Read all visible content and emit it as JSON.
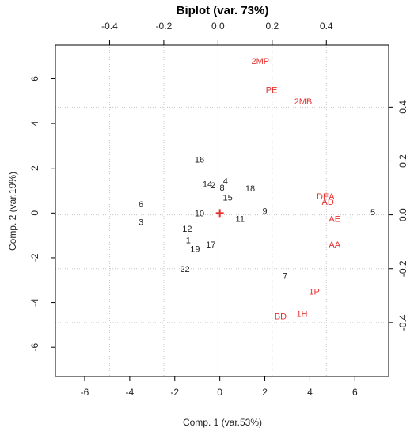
{
  "chart_data": {
    "type": "scatter",
    "title": "Biplot (var. 73%)",
    "xlabel": "Comp. 1 (var.53%)",
    "ylabel": "Comp. 2 (var.19%)",
    "xlim": [
      -7.3,
      7.5
    ],
    "ylim": [
      -7.3,
      7.5
    ],
    "x_ticks": [
      -6,
      -4,
      -2,
      0,
      2,
      4,
      6
    ],
    "x_tick_labels": [
      "-6",
      "-4",
      "-2",
      "0",
      "2",
      "4",
      "6"
    ],
    "y_ticks": [
      -6,
      -4,
      -2,
      0,
      2,
      4,
      6
    ],
    "y_tick_labels": [
      "-6",
      "-4",
      "-2",
      "0",
      "2",
      "4",
      "6"
    ],
    "top_axis": {
      "lim": [
        -0.6,
        0.63
      ],
      "ticks": [
        -0.4,
        -0.2,
        0.0,
        0.2,
        0.4
      ],
      "tick_labels": [
        "-0.4",
        "-0.2",
        "0.0",
        "0.2",
        "0.4"
      ]
    },
    "right_axis": {
      "lim": [
        -0.6,
        0.63
      ],
      "ticks": [
        -0.4,
        -0.2,
        0.0,
        0.2,
        0.4
      ],
      "tick_labels": [
        "-0.4",
        "-0.2",
        "0.0",
        "0.2",
        "0.4"
      ]
    },
    "grid": true,
    "origin_marker": "+",
    "colors": {
      "observations": "#222222",
      "variables": "#e8312f",
      "grid": "#c8c8c8",
      "axes": "#000000"
    },
    "observations": [
      {
        "label": "16",
        "x": -0.9,
        "y": 2.4
      },
      {
        "label": "14",
        "x": -0.55,
        "y": 1.3
      },
      {
        "label": "2",
        "x": -0.3,
        "y": 1.25
      },
      {
        "label": "4",
        "x": 0.25,
        "y": 1.45
      },
      {
        "label": "8",
        "x": 0.1,
        "y": 1.15
      },
      {
        "label": "18",
        "x": 1.35,
        "y": 1.1
      },
      {
        "label": "15",
        "x": 0.35,
        "y": 0.7
      },
      {
        "label": "6",
        "x": -3.5,
        "y": 0.4
      },
      {
        "label": "3",
        "x": -3.5,
        "y": -0.4
      },
      {
        "label": "10",
        "x": -0.9,
        "y": 0.0
      },
      {
        "label": "11",
        "x": 0.9,
        "y": -0.25
      },
      {
        "label": "9",
        "x": 2.0,
        "y": 0.1
      },
      {
        "label": "12",
        "x": -1.45,
        "y": -0.7
      },
      {
        "label": "1",
        "x": -1.4,
        "y": -1.2
      },
      {
        "label": "17",
        "x": -0.4,
        "y": -1.4
      },
      {
        "label": "19",
        "x": -1.1,
        "y": -1.6
      },
      {
        "label": "22",
        "x": -1.55,
        "y": -2.5
      },
      {
        "label": "7",
        "x": 2.9,
        "y": -2.8
      },
      {
        "label": "5",
        "x": 6.8,
        "y": 0.05
      }
    ],
    "variables": [
      {
        "label": "2MP",
        "x": 1.8,
        "y": 6.8
      },
      {
        "label": "PE",
        "x": 2.3,
        "y": 5.5
      },
      {
        "label": "2MB",
        "x": 3.7,
        "y": 5.0
      },
      {
        "label": "DEA",
        "x": 4.7,
        "y": 0.75
      },
      {
        "label": "AD",
        "x": 4.8,
        "y": 0.5
      },
      {
        "label": "AE",
        "x": 5.1,
        "y": -0.25
      },
      {
        "label": "AA",
        "x": 5.1,
        "y": -1.4
      },
      {
        "label": "1P",
        "x": 4.2,
        "y": -3.5
      },
      {
        "label": "1H",
        "x": 3.65,
        "y": -4.5
      },
      {
        "label": "BD",
        "x": 2.7,
        "y": -4.6
      }
    ]
  }
}
